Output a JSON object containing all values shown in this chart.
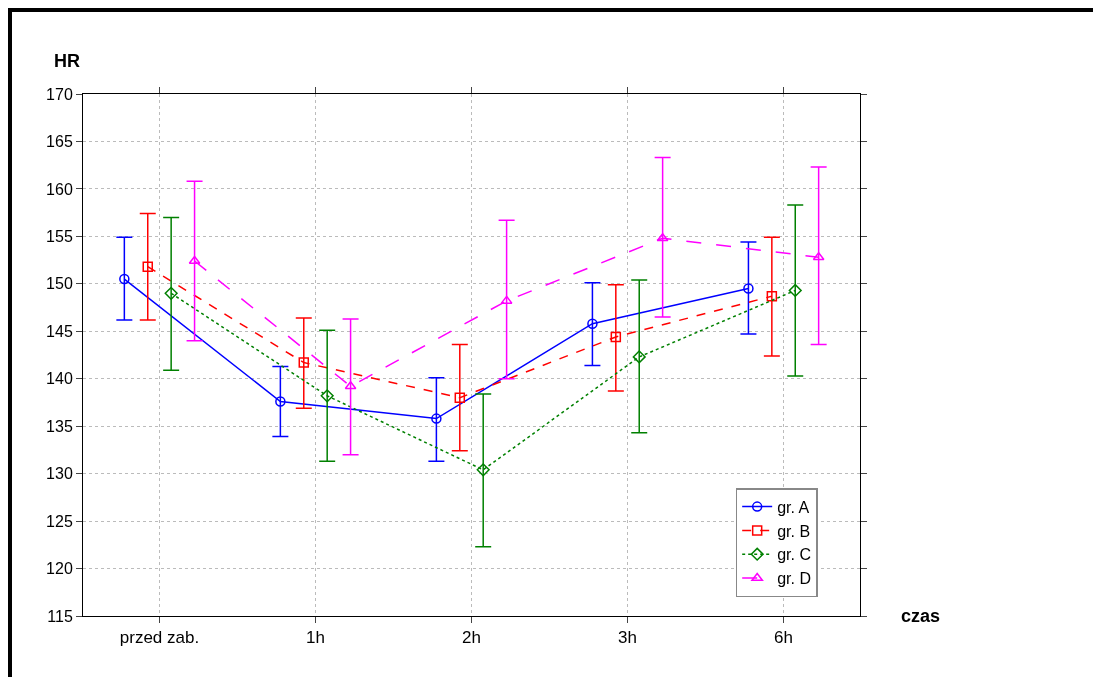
{
  "chart_data": {
    "type": "line",
    "xlabel": "czas",
    "ylabel": "HR",
    "categories": [
      "przed zab.",
      "1h",
      "2h",
      "3h",
      "6h"
    ],
    "ylim": [
      115,
      170
    ],
    "yticks": [
      115,
      120,
      125,
      130,
      135,
      140,
      145,
      150,
      155,
      160,
      165,
      170
    ],
    "grid": true,
    "legend": "bottom right",
    "series": [
      {
        "name": "gr. A",
        "color": "#0000ff",
        "marker": "circle",
        "line_style": "solid",
        "values": [
          150.5,
          137.6,
          135.8,
          145.8,
          149.5
        ],
        "errors": [
          [
            146.2,
            154.9
          ],
          [
            133.9,
            141.3
          ],
          [
            131.3,
            140.1
          ],
          [
            141.4,
            150.1
          ],
          [
            144.7,
            154.4
          ]
        ]
      },
      {
        "name": "gr. B",
        "color": "#ff0000",
        "marker": "square",
        "line_style": "dashed",
        "values": [
          151.8,
          141.7,
          138.0,
          144.4,
          148.7
        ],
        "errors": [
          [
            146.2,
            157.4
          ],
          [
            136.9,
            146.4
          ],
          [
            132.4,
            143.6
          ],
          [
            138.7,
            149.9
          ],
          [
            142.4,
            154.9
          ]
        ]
      },
      {
        "name": "gr. C",
        "color": "#008000",
        "marker": "diamond",
        "line_style": "dotted",
        "values": [
          149.0,
          138.2,
          130.4,
          142.3,
          149.3
        ],
        "errors": [
          [
            140.9,
            157.0
          ],
          [
            131.3,
            145.1
          ],
          [
            122.3,
            138.4
          ],
          [
            134.3,
            150.4
          ],
          [
            140.3,
            158.3
          ]
        ]
      },
      {
        "name": "gr. D",
        "color": "#ff00ff",
        "marker": "triangle",
        "line_style": "longdash",
        "values": [
          152.4,
          139.2,
          148.2,
          154.8,
          152.8
        ],
        "errors": [
          [
            144.0,
            160.8
          ],
          [
            132.0,
            146.3
          ],
          [
            140.0,
            156.7
          ],
          [
            146.5,
            163.3
          ],
          [
            143.6,
            162.3
          ]
        ]
      }
    ]
  }
}
